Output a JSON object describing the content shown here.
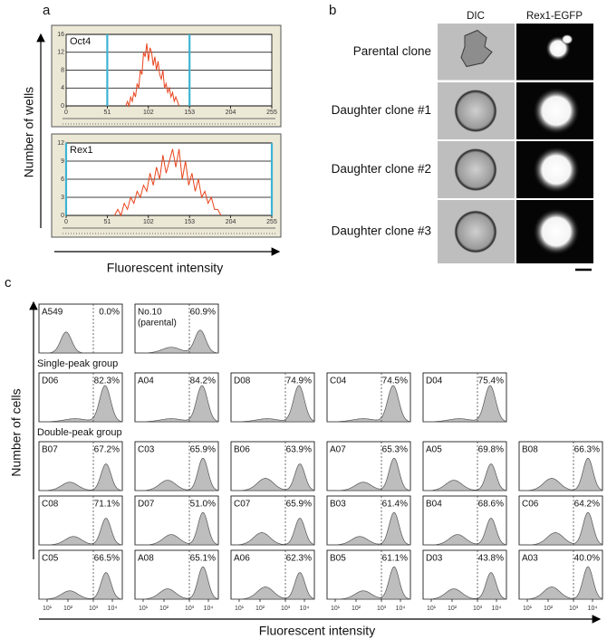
{
  "chart_data": [
    {
      "type": "line",
      "title": "Oct4",
      "color": "#e8441c",
      "x": [
        74,
        76,
        78,
        80,
        82,
        84,
        86,
        88,
        90,
        92,
        94,
        96,
        98,
        100,
        102,
        104,
        106,
        108,
        110,
        112,
        114,
        116,
        118,
        120,
        122,
        124,
        126,
        128,
        130,
        132,
        134,
        136,
        138,
        140
      ],
      "values": [
        0,
        1,
        0,
        2,
        1,
        3,
        2,
        5,
        4,
        8,
        7,
        12,
        11,
        14,
        10,
        13,
        12,
        9,
        11,
        8,
        10,
        7,
        6,
        8,
        4,
        5,
        3,
        4,
        2,
        3,
        1,
        2,
        1,
        0
      ],
      "xlim": [
        0,
        255
      ],
      "ylim": [
        0,
        16
      ],
      "xticks": [
        0,
        51,
        102,
        153,
        204,
        255
      ],
      "yticks": [
        0,
        4,
        8,
        12,
        16
      ],
      "gates": [
        51,
        153
      ],
      "gate_color": "#3cb4d4",
      "grid": true
    },
    {
      "type": "line",
      "title": "Rex1",
      "color": "#e8441c",
      "x": [
        60,
        64,
        68,
        72,
        76,
        80,
        84,
        88,
        92,
        96,
        100,
        104,
        108,
        112,
        116,
        120,
        124,
        128,
        132,
        136,
        140,
        144,
        148,
        152,
        156,
        160,
        164,
        168,
        172,
        176,
        180,
        184,
        188,
        192
      ],
      "values": [
        0,
        1,
        0,
        2,
        1,
        3,
        2,
        4,
        3,
        5,
        4,
        7,
        5,
        8,
        6,
        10,
        7,
        9,
        11,
        8,
        11,
        6,
        9,
        5,
        7,
        4,
        6,
        3,
        4,
        2,
        3,
        1,
        1,
        0
      ],
      "xlim": [
        0,
        255
      ],
      "ylim": [
        0,
        12
      ],
      "xticks": [
        0,
        51,
        102,
        153,
        204,
        255
      ],
      "yticks": [
        0,
        3,
        6,
        9,
        12
      ],
      "gates": [
        0,
        255
      ],
      "gate_color": "#3cb4d4",
      "grid": true
    }
  ],
  "panel_a": {
    "label": "a",
    "y_axis_label": "Number of wells",
    "x_axis_label": "Fluorescent intensity"
  },
  "panel_b": {
    "label": "b",
    "columns": [
      "DIC",
      "Rex1-EGFP"
    ],
    "rows": [
      "Parental clone",
      "Daughter clone #1",
      "Daughter clone #2",
      "Daughter clone #3"
    ]
  },
  "panel_c": {
    "label": "c",
    "y_axis_label": "Number of cells",
    "x_axis_label": "Fluorescent intensity",
    "xticks": [
      "10¹",
      "10²",
      "10³",
      "10⁴"
    ],
    "groups": [
      {
        "plots": [
          {
            "name": "A549",
            "percent": "0.0%"
          },
          {
            "name": "No.10",
            "note": "(parental)",
            "percent": "60.9%"
          }
        ]
      },
      {
        "title": "Single-peak group",
        "plots": [
          {
            "name": "D06",
            "percent": "82.3%"
          },
          {
            "name": "A04",
            "percent": "84.2%"
          },
          {
            "name": "D08",
            "percent": "74.9%"
          },
          {
            "name": "C04",
            "percent": "74.5%"
          },
          {
            "name": "D04",
            "percent": "75.4%"
          }
        ]
      },
      {
        "title": "Double-peak group",
        "plots": [
          {
            "name": "B07",
            "percent": "67.2%"
          },
          {
            "name": "C03",
            "percent": "65.9%"
          },
          {
            "name": "B06",
            "percent": "63.9%"
          },
          {
            "name": "A07",
            "percent": "65.3%"
          },
          {
            "name": "A05",
            "percent": "69.8%"
          },
          {
            "name": "B08",
            "percent": "66.3%"
          },
          {
            "name": "C08",
            "percent": "71.1%"
          },
          {
            "name": "D07",
            "percent": "51.0%"
          },
          {
            "name": "C07",
            "percent": "65.9%"
          },
          {
            "name": "B03",
            "percent": "61.4%"
          },
          {
            "name": "B04",
            "percent": "68.6%"
          },
          {
            "name": "C06",
            "percent": "64.2%"
          },
          {
            "name": "C05",
            "percent": "66.5%"
          },
          {
            "name": "A08",
            "percent": "65.1%"
          },
          {
            "name": "A06",
            "percent": "62.3%"
          },
          {
            "name": "B05",
            "percent": "61.1%"
          },
          {
            "name": "D03",
            "percent": "43.8%"
          },
          {
            "name": "A03",
            "percent": "40.0%"
          }
        ]
      }
    ]
  }
}
